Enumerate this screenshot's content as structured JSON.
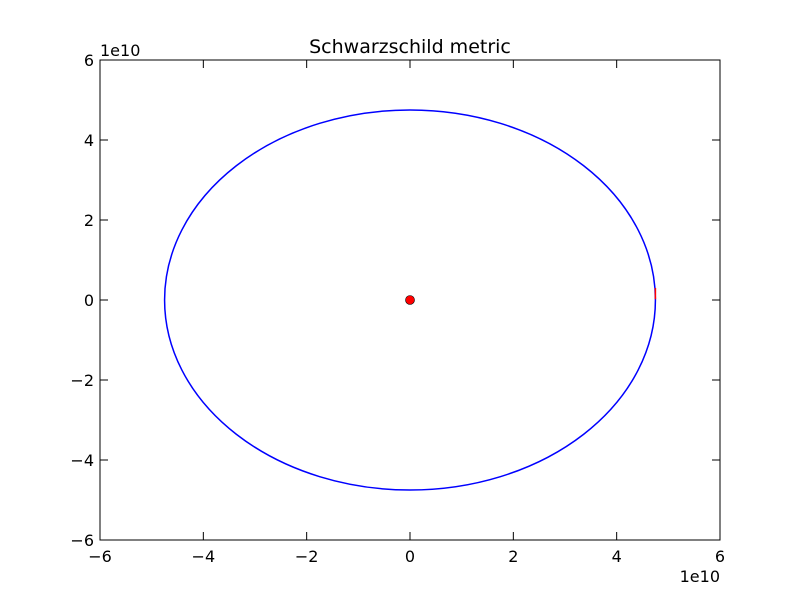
{
  "chart_data": {
    "type": "line",
    "title": "Schwarzschild metric",
    "xlabel": "",
    "ylabel": "",
    "x_offset_label": "1e10",
    "y_offset_label": "1e10",
    "xlim": [
      -6,
      6
    ],
    "ylim": [
      -6,
      6
    ],
    "xticks": [
      -6,
      -4,
      -2,
      0,
      2,
      4,
      6
    ],
    "yticks": [
      -6,
      -4,
      -2,
      0,
      2,
      4,
      6
    ],
    "xtick_labels": [
      "−6",
      "−4",
      "−2",
      "0",
      "2",
      "4",
      "6"
    ],
    "ytick_labels": [
      "−6",
      "−4",
      "−2",
      "0",
      "2",
      "4",
      "6"
    ],
    "grid": false,
    "series": [
      {
        "kind": "orbit",
        "color": "#0000ff",
        "center": [
          0,
          0
        ],
        "radius_x": 4.75,
        "radius_y": 4.75
      },
      {
        "kind": "short-segment",
        "color": "#ff0000",
        "points": [
          [
            4.75,
            0.02
          ],
          [
            4.75,
            0.3
          ]
        ]
      },
      {
        "kind": "marker",
        "color": "#ff0000",
        "x": 0,
        "y": 0
      }
    ]
  }
}
